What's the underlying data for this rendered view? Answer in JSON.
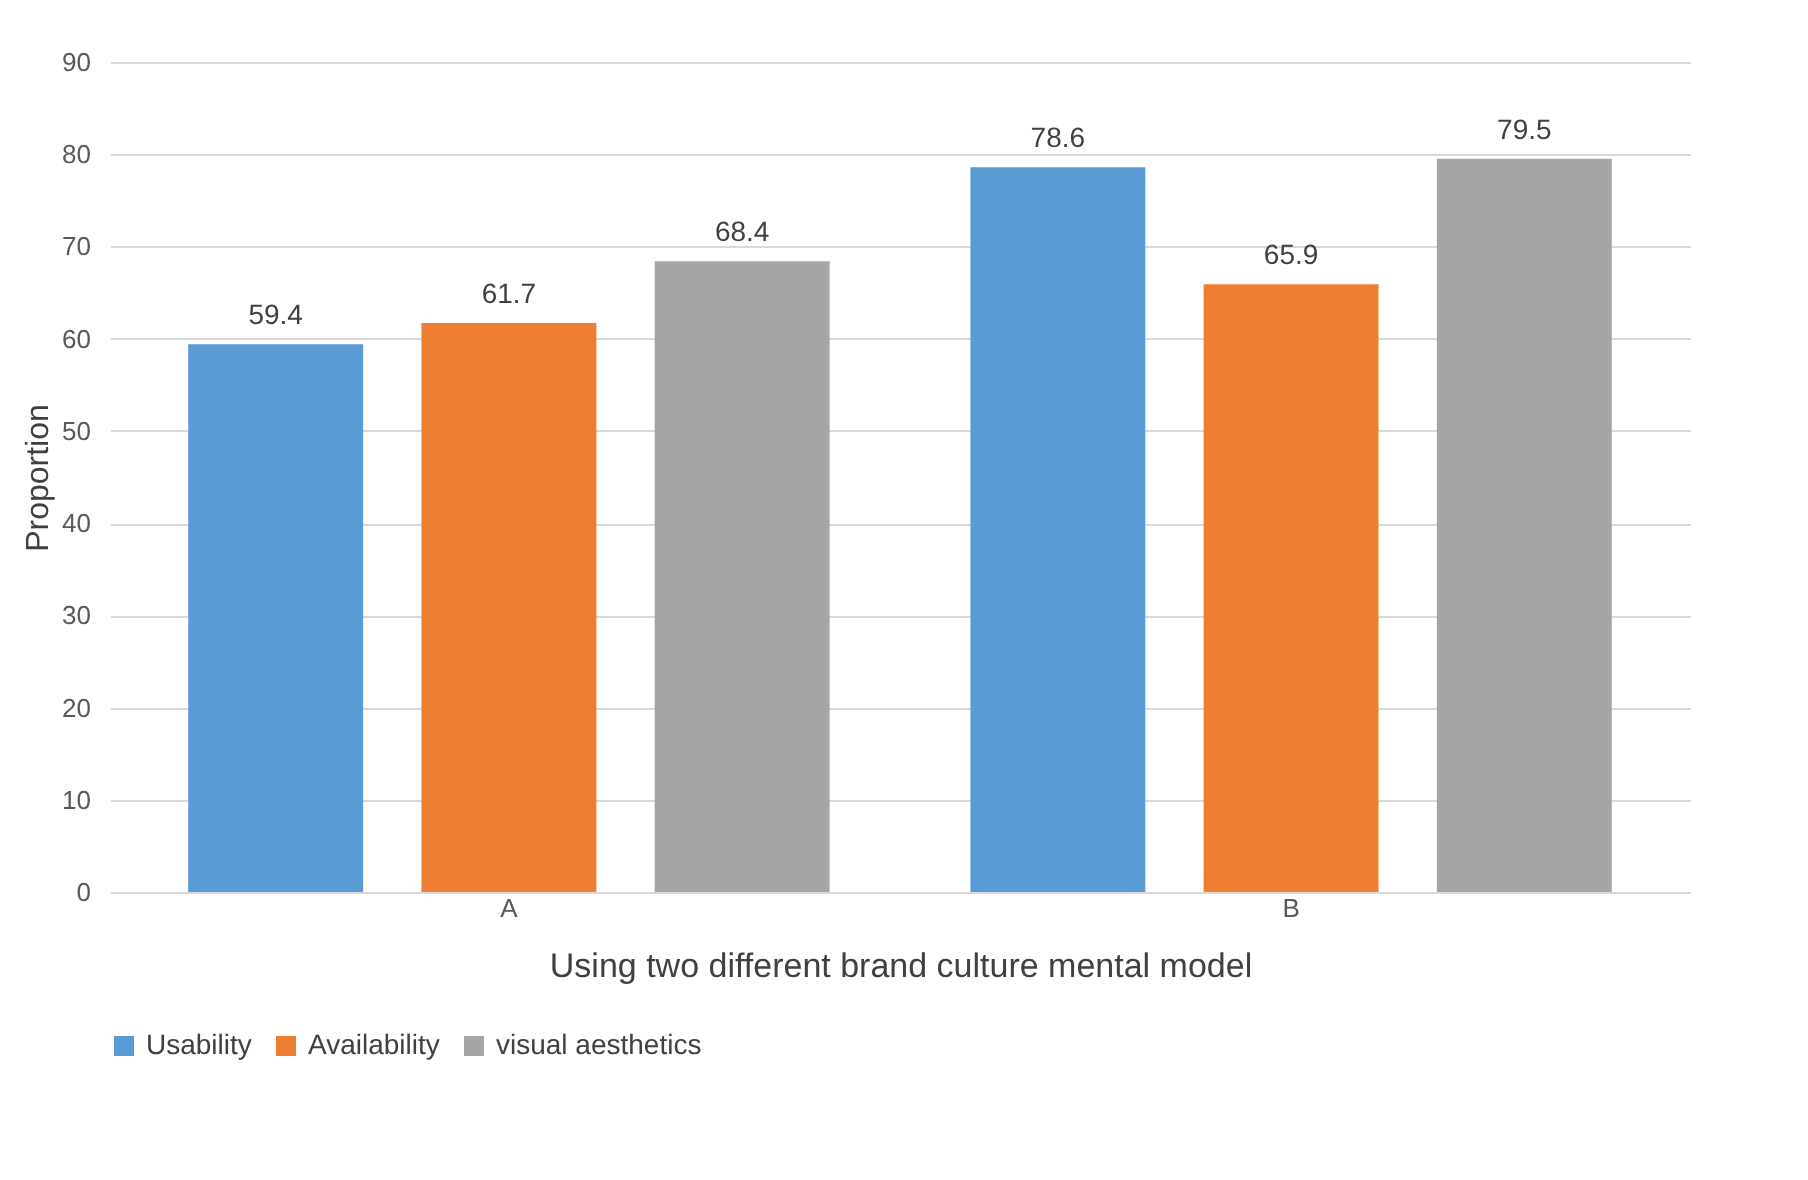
{
  "chart_data": {
    "type": "bar",
    "xlabel": "Using two different brand culture mental model",
    "ylabel": "Proportion",
    "categories": [
      "A",
      "B"
    ],
    "series": [
      {
        "name": "Usability",
        "color": "#5b9bd5",
        "values": [
          59.4,
          78.6
        ]
      },
      {
        "name": "Availability",
        "color": "#ed7d31",
        "values": [
          61.7,
          65.9
        ]
      },
      {
        "name": "visual aesthetics",
        "color": "#a5a5a5",
        "values": [
          68.4,
          79.5
        ]
      }
    ],
    "ylim": [
      0,
      90
    ],
    "yticks": [
      0,
      10,
      20,
      30,
      40,
      50,
      60,
      70,
      80,
      90
    ],
    "grid": "y",
    "legend": "bottom",
    "data_labels": true
  }
}
